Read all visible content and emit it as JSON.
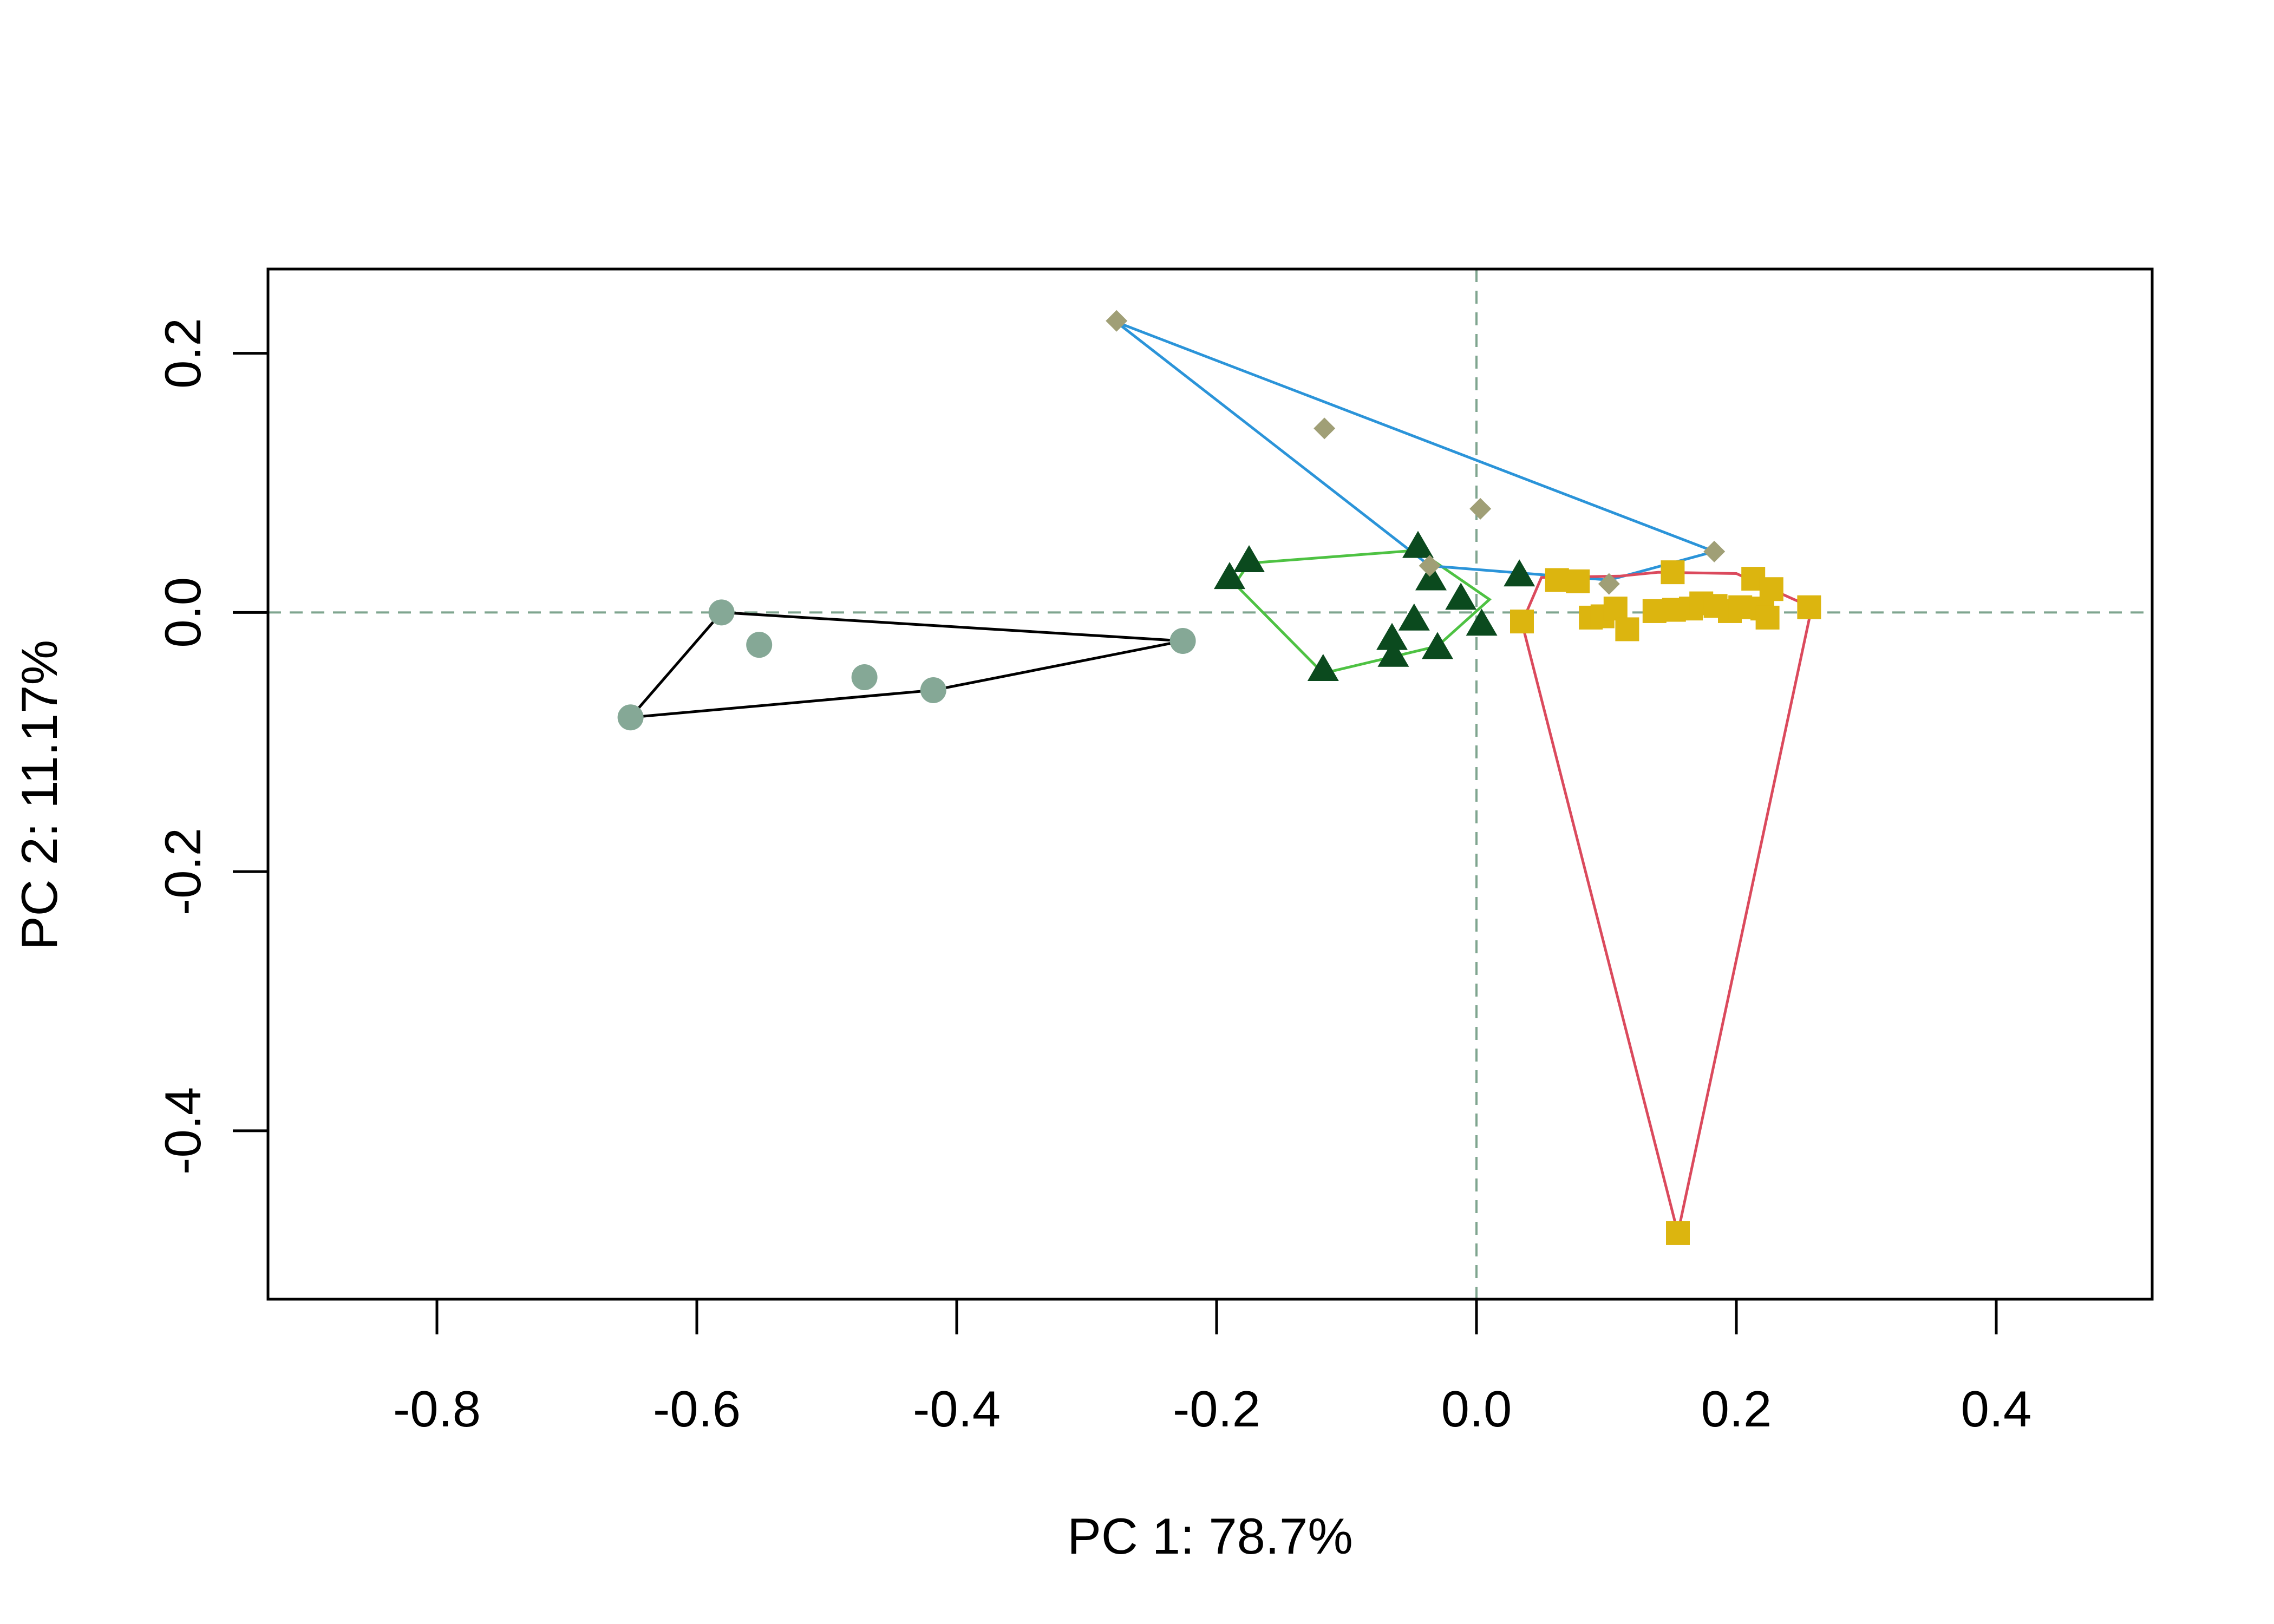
{
  "chart_data": {
    "type": "scatter",
    "title": "",
    "xlabel": "PC 1: 78.7%",
    "ylabel": "PC 2: 11.17%",
    "xlim": [
      -0.93,
      0.52
    ],
    "ylim": [
      -0.53,
      0.265
    ],
    "x_ticks": [
      -0.8,
      -0.6,
      -0.4,
      -0.2,
      0.0,
      0.2,
      0.4
    ],
    "x_tick_labels": [
      "-0.8",
      "-0.6",
      "-0.4",
      "-0.2",
      "0.0",
      "0.2",
      "0.4"
    ],
    "y_ticks": [
      -0.4,
      -0.2,
      0.0,
      0.2
    ],
    "y_tick_labels": [
      "-0.4",
      "-0.2",
      "0.0",
      "0.2"
    ],
    "reference_lines": {
      "x": 0.0,
      "y": 0.0,
      "color": "#7fa58f",
      "style": "dashed"
    },
    "grid": false,
    "legend": "none",
    "series": [
      {
        "marker": "circle",
        "color": "#85a896",
        "hull_color": "#000000",
        "points": [
          [
            -0.581,
            0.0
          ],
          [
            -0.552,
            -0.025
          ],
          [
            -0.471,
            -0.05
          ],
          [
            -0.418,
            -0.06
          ],
          [
            -0.226,
            -0.022
          ],
          [
            -0.651,
            -0.081
          ]
        ],
        "hull": [
          [
            -0.581,
            0.0
          ],
          [
            -0.226,
            -0.022
          ],
          [
            -0.418,
            -0.06
          ],
          [
            -0.651,
            -0.081
          ]
        ]
      },
      {
        "marker": "triangle",
        "color": "#0b4a1e",
        "hull_color": "#4ec243",
        "points": [
          [
            -0.19,
            0.026
          ],
          [
            -0.175,
            0.039
          ],
          [
            -0.118,
            -0.045
          ],
          [
            -0.065,
            -0.021
          ],
          [
            -0.064,
            -0.034
          ],
          [
            -0.048,
            -0.006
          ],
          [
            -0.045,
            0.05
          ],
          [
            -0.035,
            0.025
          ],
          [
            -0.03,
            -0.028
          ],
          [
            -0.012,
            0.01
          ],
          [
            0.004,
            -0.01
          ],
          [
            0.033,
            0.028
          ]
        ],
        "hull": [
          [
            -0.186,
            0.022
          ],
          [
            -0.175,
            0.038
          ],
          [
            -0.045,
            0.048
          ],
          [
            0.01,
            0.01
          ],
          [
            -0.03,
            -0.026
          ],
          [
            -0.118,
            -0.047
          ]
        ]
      },
      {
        "marker": "diamond",
        "color": "#a09f76",
        "hull_color": "#2b94d9",
        "points": [
          [
            -0.277,
            0.225
          ],
          [
            -0.117,
            0.142
          ],
          [
            0.003,
            0.08
          ],
          [
            -0.036,
            0.036
          ],
          [
            0.102,
            0.022
          ],
          [
            0.183,
            0.047
          ]
        ],
        "hull": [
          [
            -0.277,
            0.224
          ],
          [
            0.183,
            0.047
          ],
          [
            0.102,
            0.025
          ],
          [
            -0.036,
            0.036
          ]
        ]
      },
      {
        "marker": "square",
        "color": "#dcb50f",
        "hull_color": "#db4a5d",
        "points": [
          [
            0.035,
            -0.007
          ],
          [
            0.062,
            0.025
          ],
          [
            0.078,
            0.024
          ],
          [
            0.088,
            -0.004
          ],
          [
            0.097,
            -0.003
          ],
          [
            0.107,
            0.003
          ],
          [
            0.116,
            -0.013
          ],
          [
            0.137,
            0.001
          ],
          [
            0.152,
            0.002
          ],
          [
            0.151,
            0.031
          ],
          [
            0.165,
            0.003
          ],
          [
            0.173,
            0.007
          ],
          [
            0.184,
            0.005
          ],
          [
            0.195,
            0.001
          ],
          [
            0.203,
            0.004
          ],
          [
            0.213,
            0.026
          ],
          [
            0.22,
            0.003
          ],
          [
            0.224,
            -0.004
          ],
          [
            0.227,
            0.018
          ],
          [
            0.256,
            0.004
          ],
          [
            0.155,
            -0.479
          ]
        ],
        "hull": [
          [
            0.035,
            -0.008
          ],
          [
            0.155,
            -0.479
          ],
          [
            0.258,
            0.004
          ],
          [
            0.222,
            0.02
          ],
          [
            0.2,
            0.03
          ],
          [
            0.14,
            0.031
          ],
          [
            0.11,
            0.028
          ],
          [
            0.05,
            0.027
          ]
        ]
      }
    ]
  }
}
